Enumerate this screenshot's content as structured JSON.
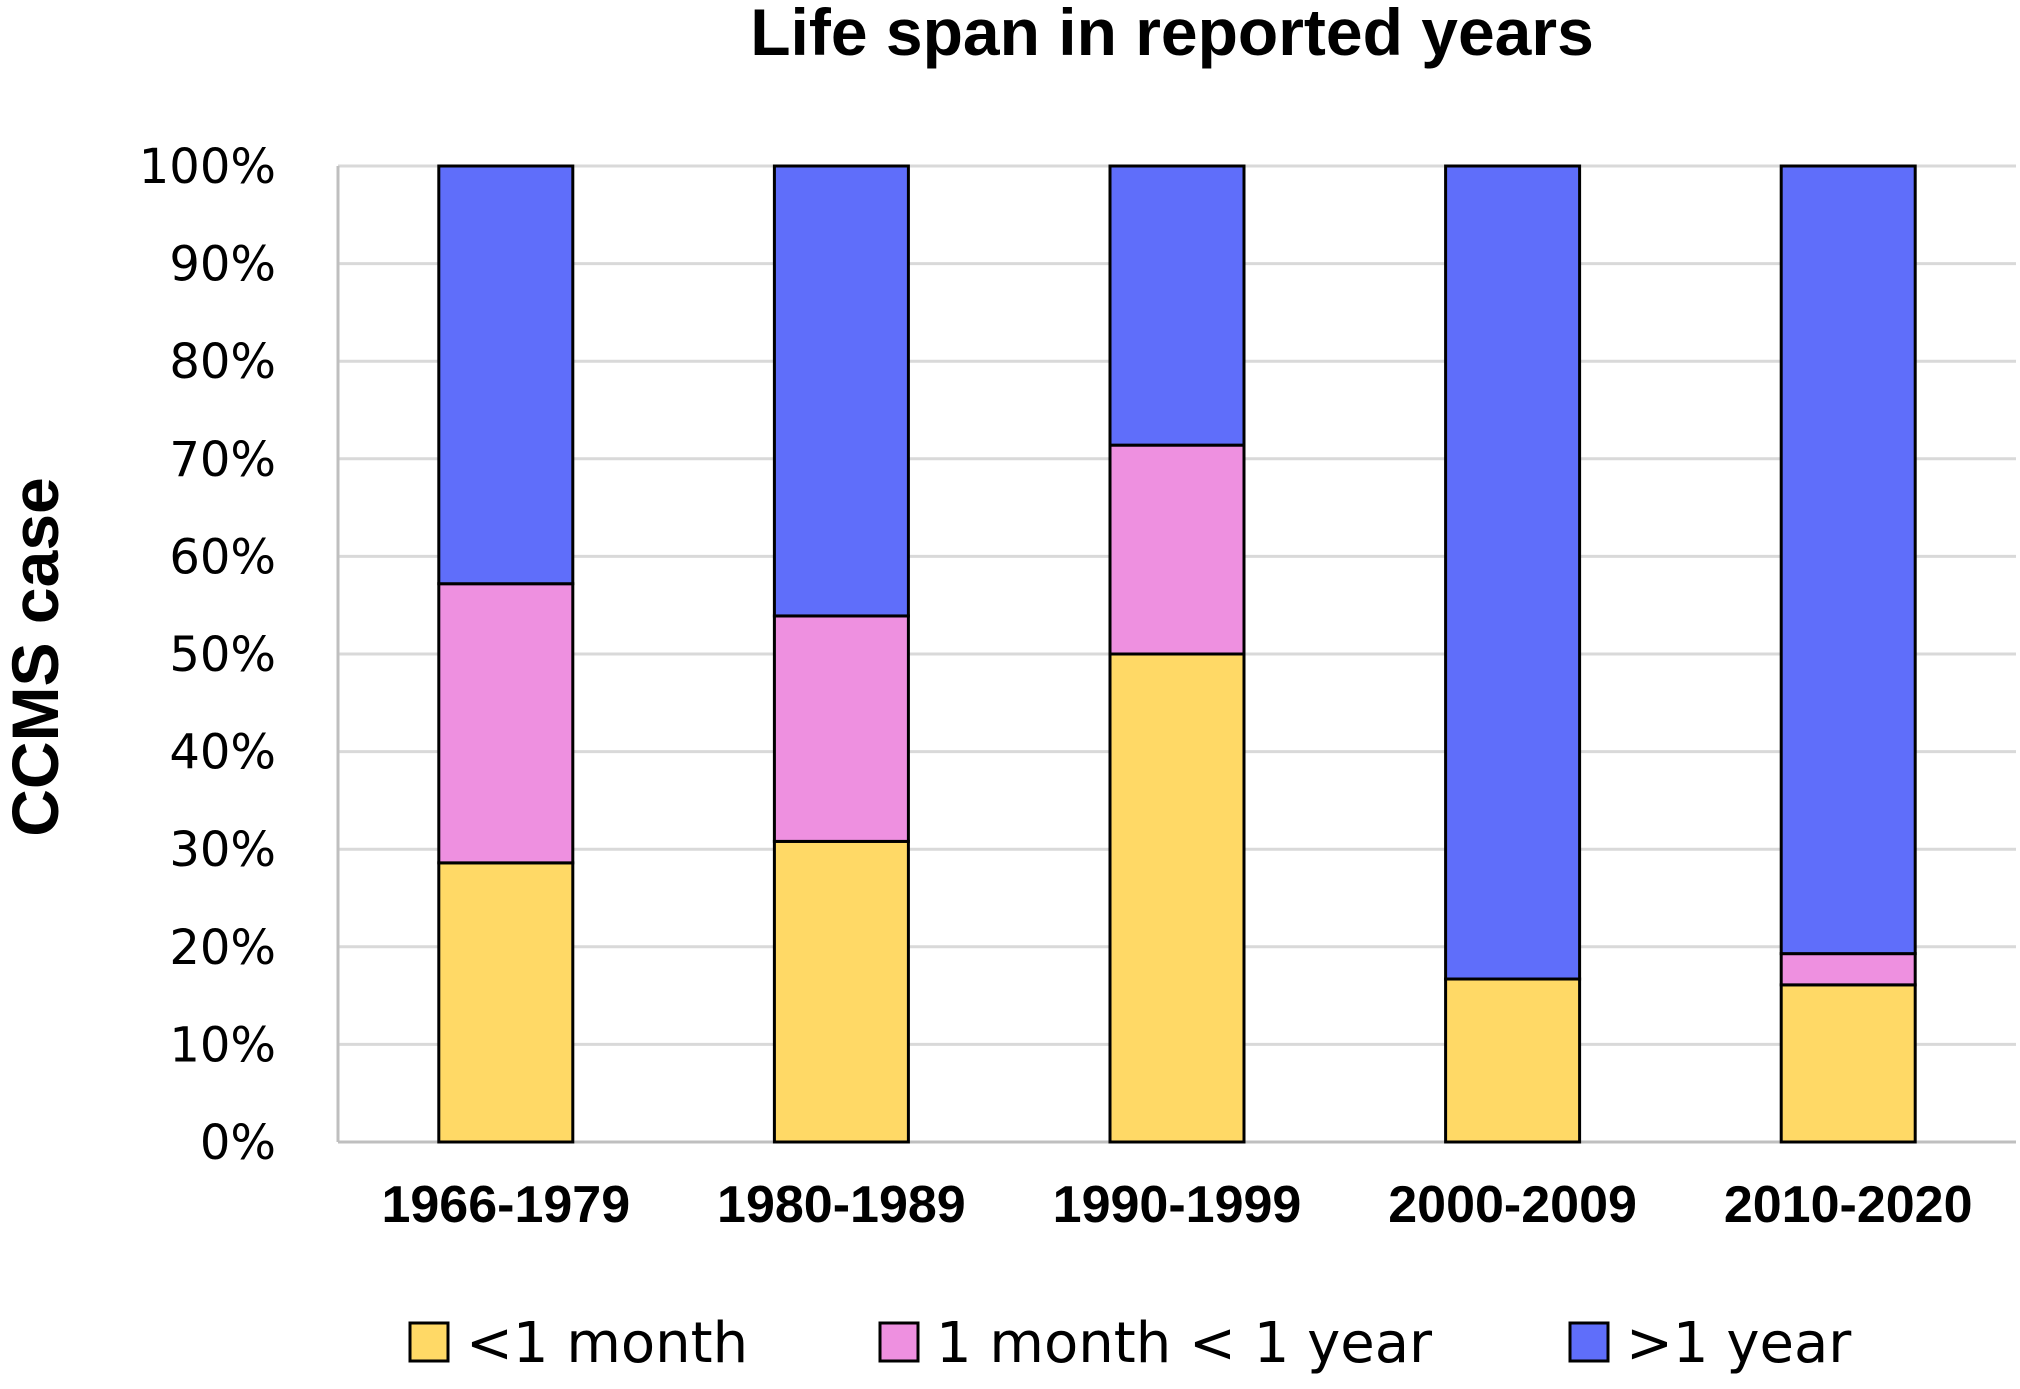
{
  "chart_data": {
    "type": "bar",
    "stacked": true,
    "normalized": true,
    "title": "Life span in reported years",
    "ylabel": "CCMS case",
    "xlabel": "",
    "ylim": [
      0,
      100
    ],
    "y_ticks": [
      "0%",
      "10%",
      "20%",
      "30%",
      "40%",
      "50%",
      "60%",
      "70%",
      "80%",
      "90%",
      "100%"
    ],
    "categories": [
      "1966-1979",
      "1980-1989",
      "1990-1999",
      "2000-2009",
      "2010-2020"
    ],
    "series": [
      {
        "name": "<1 month",
        "color": "#FFD966",
        "values": [
          28.6,
          30.8,
          50.0,
          16.7,
          16.1
        ]
      },
      {
        "name": "1 month < 1 year",
        "color": "#EE90E0",
        "values": [
          28.6,
          23.1,
          21.4,
          0.0,
          3.2
        ]
      },
      {
        "name": ">1 year",
        "color": "#5F6EFA",
        "values": [
          42.8,
          46.1,
          28.6,
          83.3,
          80.7
        ]
      }
    ],
    "grid": true,
    "legend_position": "bottom"
  }
}
